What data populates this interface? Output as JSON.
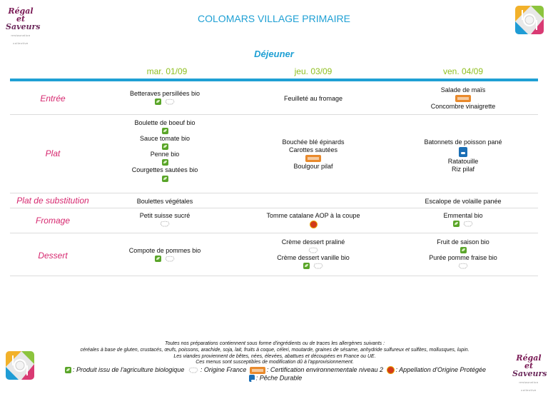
{
  "brand": {
    "line1": "Régal et",
    "line2": "Saveurs",
    "tagline": "restauration collective"
  },
  "title": "COLOMARS VILLAGE PRIMAIRE",
  "meal": "Déjeuner",
  "days": [
    "mar. 01/09",
    "jeu. 03/09",
    "ven. 04/09"
  ],
  "categories": [
    "Entrée",
    "Plat",
    "Plat de substitution",
    "Fromage",
    "Dessert"
  ],
  "menu": {
    "entree": {
      "d1": [
        "Betteraves persillées bio"
      ],
      "d2": [
        "Feuilleté au fromage"
      ],
      "d3": [
        "Salade de maïs",
        "Concombre vinaigrette"
      ]
    },
    "plat": {
      "d1": [
        "Boulette de boeuf bio",
        "Sauce tomate bio",
        "Penne bio",
        "Courgettes sautées bio"
      ],
      "d2": [
        "Bouchée blé épinards",
        "Carottes sautées",
        "Boulgour pilaf"
      ],
      "d3": [
        "Batonnets de poisson pané",
        "Ratatouille",
        "Riz pilaf"
      ]
    },
    "substitution": {
      "d1": [
        "Boulettes végétales"
      ],
      "d3": [
        "Escalope de volaille panée"
      ]
    },
    "fromage": {
      "d1": [
        "Petit suisse sucré"
      ],
      "d2": [
        "Tomme catalane AOP à la coupe"
      ],
      "d3": [
        "Emmental bio"
      ]
    },
    "dessert": {
      "d1": [
        "Compote de pommes bio"
      ],
      "d2": [
        "Crème dessert praliné",
        "Crème dessert vanille bio"
      ],
      "d3": [
        "Fruit de saison bio",
        "Purée pomme fraise bio"
      ]
    }
  },
  "icons": {
    "bio": "organic-leaf-icon",
    "france": "france-map-icon",
    "he": "hve-badge-icon",
    "aop": "aop-seal-icon",
    "msc": "msc-fish-icon"
  },
  "colors": {
    "title": "#1fa0d4",
    "day": "#8fbf1f",
    "category": "#d6286f",
    "bar": "#1fa0d4"
  },
  "footer": {
    "line1": "Toutes nos préparations contiennent sous forme d'ingrédients ou de traces les allergènes suivants :",
    "line2": "céréales à base de gluten, crustacés, œufs, poissons, arachide, soja, lait, fruits à coque, céleri, moutarde, graines de sésame, anhydride sulfureux et sulfites, mollusques, lupin.",
    "line3": "Les viandes proviennent de bêtes, nées, élevées, abattues et découpées en France ou UE.",
    "line4": "Ces menus sont susceptibles de modification dû à l'approvisionnement."
  },
  "legend": {
    "bio": ": Produit issu de l'agriculture biologique",
    "france": ": Origine France",
    "he": ": Certification environnementale niveau 2",
    "aop": ": Appellation d'Origine Protégée",
    "msc": ": Pêche Durable"
  }
}
